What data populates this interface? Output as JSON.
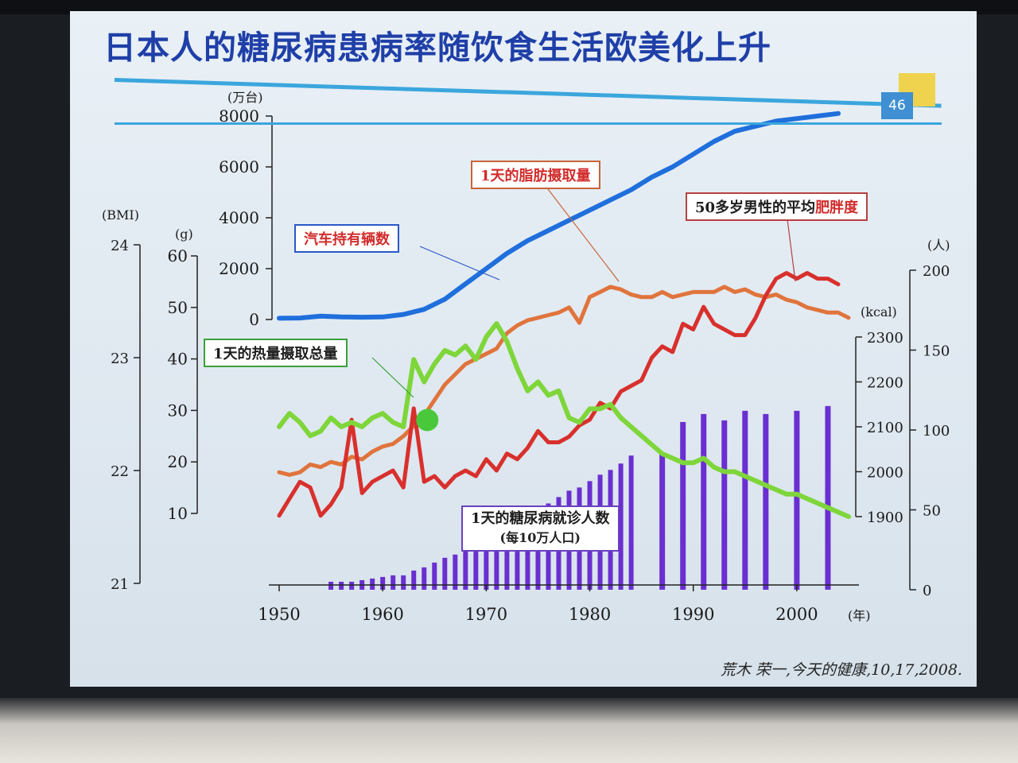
{
  "slide": {
    "title": "日本人的糖尿病患病率随饮食生活欧美化上升",
    "page_number": "46",
    "credit": "荒木 荣一,今天的健康,10,17,2008."
  },
  "labels": {
    "cars": "汽车持有辆数",
    "fat": "1天的脂肪摄取量",
    "energy": "1天的热量摄取总量",
    "bmi_prefix": "50多岁男性的平均",
    "bmi_emph": "肥胖度",
    "patients_line1": "1天的糖尿病就诊人数",
    "patients_line2": "(每10万人口)"
  },
  "colors": {
    "cars": "#1f6fdc",
    "fat": "#e0743c",
    "energy": "#7ed63a",
    "bmi": "#d8302c",
    "patients": "#6a2fd0"
  },
  "chart_data": {
    "type": "line",
    "x_axis": {
      "label": "(年)",
      "ticks": [
        1950,
        1960,
        1970,
        1980,
        1990,
        2000
      ],
      "range": [
        1949,
        2006
      ]
    },
    "axes": {
      "cars": {
        "unit": "(万台)",
        "ticks": [
          0,
          2000,
          4000,
          6000,
          8000
        ],
        "range": [
          0,
          8000
        ]
      },
      "fat": {
        "unit": "(g)",
        "ticks": [
          10,
          20,
          30,
          40,
          50,
          60
        ],
        "range": [
          10,
          60
        ]
      },
      "bmi": {
        "unit": "(BMI)",
        "ticks": [
          21,
          22,
          23,
          24
        ],
        "range": [
          21,
          24
        ]
      },
      "energy": {
        "unit": "(kcal)",
        "ticks": [
          1900,
          2000,
          2100,
          2200,
          2300
        ],
        "range": [
          1900,
          2300
        ]
      },
      "patients": {
        "unit": "(人)",
        "ticks": [
          0,
          50,
          100,
          150,
          200
        ],
        "range": [
          0,
          200
        ]
      }
    },
    "series": [
      {
        "name": "汽车持有辆数",
        "axis": "cars",
        "type": "line",
        "x": [
          1950,
          1952,
          1954,
          1956,
          1958,
          1960,
          1962,
          1964,
          1966,
          1968,
          1970,
          1972,
          1974,
          1976,
          1978,
          1980,
          1982,
          1984,
          1986,
          1988,
          1990,
          1992,
          1994,
          1996,
          1998,
          2000,
          2002,
          2004
        ],
        "values": [
          50,
          60,
          130,
          100,
          90,
          100,
          200,
          400,
          800,
          1400,
          2000,
          2600,
          3100,
          3500,
          3900,
          4300,
          4700,
          5100,
          5600,
          6000,
          6500,
          7000,
          7400,
          7600,
          7800,
          7900,
          8000,
          8100
        ]
      },
      {
        "name": "1天的脂肪摄取量",
        "axis": "fat",
        "type": "line",
        "x": [
          1950,
          1951,
          1952,
          1953,
          1954,
          1955,
          1956,
          1957,
          1958,
          1959,
          1960,
          1961,
          1962,
          1963,
          1964,
          1965,
          1966,
          1967,
          1968,
          1969,
          1970,
          1971,
          1972,
          1973,
          1974,
          1975,
          1976,
          1977,
          1978,
          1979,
          1980,
          1981,
          1982,
          1983,
          1984,
          1985,
          1986,
          1987,
          1988,
          1989,
          1990,
          1991,
          1992,
          1993,
          1994,
          1995,
          1996,
          1997,
          1998,
          1999,
          2000,
          2001,
          2002,
          2003,
          2004,
          2005
        ],
        "values": [
          18,
          17.5,
          18,
          19.5,
          19,
          20,
          19.5,
          21,
          20.5,
          22,
          23,
          23.5,
          25,
          27,
          29,
          32,
          35,
          37,
          39,
          40,
          41,
          42,
          45,
          46.5,
          47.5,
          48,
          48.5,
          49,
          50,
          47,
          52,
          53,
          54,
          53.5,
          52.5,
          52,
          52,
          53,
          52,
          52.5,
          53,
          53,
          53,
          54,
          53,
          53.5,
          52.5,
          52,
          52.5,
          51.5,
          51,
          50,
          49.5,
          49,
          49,
          48
        ]
      },
      {
        "name": "1天的热量摄取总量",
        "axis": "energy",
        "type": "line",
        "x": [
          1950,
          1951,
          1952,
          1953,
          1954,
          1955,
          1956,
          1957,
          1958,
          1959,
          1960,
          1961,
          1962,
          1963,
          1964,
          1965,
          1966,
          1967,
          1968,
          1969,
          1970,
          1971,
          1972,
          1973,
          1974,
          1975,
          1976,
          1977,
          1978,
          1979,
          1980,
          1981,
          1982,
          1983,
          1984,
          1985,
          1986,
          1987,
          1988,
          1989,
          1990,
          1991,
          1992,
          1993,
          1994,
          1995,
          1996,
          1997,
          1998,
          1999,
          2000,
          2001,
          2002,
          2003,
          2004,
          2005
        ],
        "values": [
          2100,
          2130,
          2110,
          2080,
          2090,
          2120,
          2100,
          2110,
          2100,
          2120,
          2130,
          2110,
          2100,
          2250,
          2200,
          2240,
          2270,
          2260,
          2280,
          2250,
          2300,
          2330,
          2290,
          2230,
          2180,
          2200,
          2170,
          2180,
          2120,
          2110,
          2140,
          2140,
          2150,
          2120,
          2100,
          2080,
          2060,
          2040,
          2030,
          2020,
          2020,
          2030,
          2010,
          2000,
          2000,
          1990,
          1980,
          1970,
          1960,
          1950,
          1950,
          1940,
          1930,
          1920,
          1910,
          1900
        ]
      },
      {
        "name": "50多岁男性的平均肥胖度",
        "axis": "bmi",
        "type": "line",
        "x": [
          1950,
          1951,
          1952,
          1953,
          1954,
          1955,
          1956,
          1957,
          1958,
          1959,
          1960,
          1961,
          1962,
          1963,
          1964,
          1965,
          1966,
          1967,
          1968,
          1969,
          1970,
          1971,
          1972,
          1973,
          1974,
          1975,
          1976,
          1977,
          1978,
          1979,
          1980,
          1981,
          1982,
          1983,
          1984,
          1985,
          1986,
          1987,
          1988,
          1989,
          1990,
          1991,
          1992,
          1993,
          1994,
          1995,
          1996,
          1997,
          1998,
          1999,
          2000,
          2001,
          2002,
          2003,
          2004
        ],
        "values": [
          21.6,
          21.75,
          21.9,
          21.85,
          21.6,
          21.7,
          21.85,
          22.45,
          21.8,
          21.9,
          21.95,
          22.0,
          21.85,
          22.55,
          21.9,
          21.95,
          21.85,
          21.95,
          22.0,
          21.95,
          22.1,
          22.0,
          22.15,
          22.1,
          22.2,
          22.35,
          22.25,
          22.25,
          22.3,
          22.4,
          22.45,
          22.6,
          22.55,
          22.7,
          22.75,
          22.8,
          23.0,
          23.1,
          23.05,
          23.3,
          23.25,
          23.45,
          23.3,
          23.25,
          23.2,
          23.2,
          23.35,
          23.55,
          23.7,
          23.75,
          23.7,
          23.75,
          23.7,
          23.7,
          23.65
        ]
      },
      {
        "name": "1天的糖尿病就诊人数",
        "axis": "patients",
        "type": "bar",
        "x": [
          1955,
          1956,
          1957,
          1958,
          1959,
          1960,
          1961,
          1962,
          1963,
          1964,
          1965,
          1966,
          1967,
          1968,
          1969,
          1970,
          1971,
          1972,
          1973,
          1974,
          1975,
          1976,
          1977,
          1978,
          1979,
          1980,
          1981,
          1982,
          1983,
          1984,
          1987,
          1989,
          1991,
          1993,
          1995,
          1997,
          2000,
          2003
        ],
        "values": [
          5,
          5,
          5,
          6,
          7,
          8,
          9,
          9,
          12,
          14,
          17,
          20,
          22,
          25,
          29,
          33,
          36,
          38,
          42,
          45,
          50,
          54,
          58,
          62,
          64,
          68,
          72,
          75,
          79,
          84,
          85,
          105,
          110,
          106,
          112,
          110,
          112,
          115
        ]
      }
    ]
  }
}
